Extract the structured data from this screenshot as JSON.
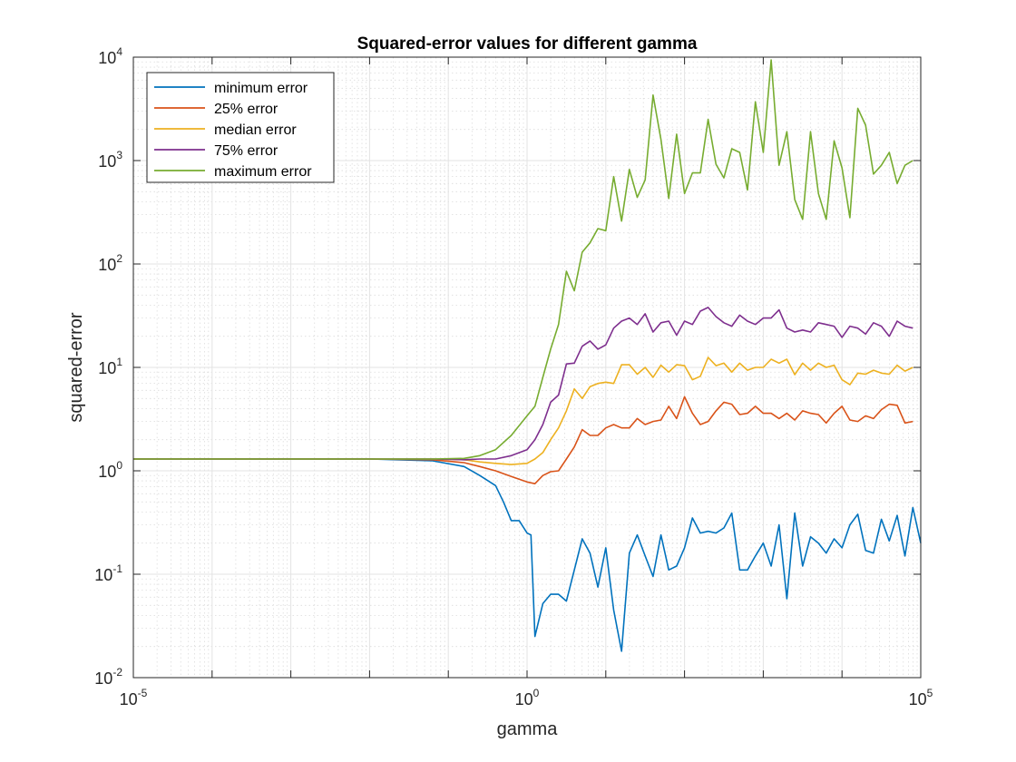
{
  "chart_data": {
    "type": "line",
    "title": "Squared-error values for different gamma",
    "xlabel": "gamma",
    "ylabel": "squared-error",
    "xscale": "log",
    "yscale": "log",
    "xlim": [
      1e-05,
      100000.0
    ],
    "ylim": [
      0.01,
      10000
    ],
    "grid": true,
    "minor_grid": true,
    "legend_position": "top-left",
    "x_ticks": [
      {
        "base": "10",
        "exp": "-5"
      },
      {
        "base": "10",
        "exp": "0"
      },
      {
        "base": "10",
        "exp": "5"
      }
    ],
    "y_ticks": [
      {
        "base": "10",
        "exp": "-2"
      },
      {
        "base": "10",
        "exp": "-1"
      },
      {
        "base": "10",
        "exp": "0"
      },
      {
        "base": "10",
        "exp": "1"
      },
      {
        "base": "10",
        "exp": "2"
      },
      {
        "base": "10",
        "exp": "3"
      },
      {
        "base": "10",
        "exp": "4"
      }
    ],
    "series": [
      {
        "name": "minimum error",
        "color": "#0072BD",
        "log10_x": [
          -5,
          -2,
          -1.2,
          -0.8,
          -0.6,
          -0.4,
          -0.3,
          -0.2,
          -0.1,
          0.0,
          0.05,
          0.1,
          0.2,
          0.3,
          0.4,
          0.5,
          0.6,
          0.7,
          0.8,
          0.9,
          1.0,
          1.1,
          1.2,
          1.3,
          1.4,
          1.5,
          1.6,
          1.7,
          1.8,
          1.9,
          2.0,
          2.1,
          2.2,
          2.3,
          2.4,
          2.5,
          2.6,
          2.7,
          2.8,
          2.9,
          3.0,
          3.1,
          3.2,
          3.3,
          3.4,
          3.5,
          3.6,
          3.7,
          3.8,
          3.9,
          4.0,
          4.1,
          4.2,
          4.3,
          4.4,
          4.5,
          4.6,
          4.7,
          4.8,
          4.9,
          5.0
        ],
        "y": [
          1.3,
          1.3,
          1.25,
          1.1,
          0.9,
          0.72,
          0.5,
          0.33,
          0.33,
          0.25,
          0.24,
          0.025,
          0.052,
          0.064,
          0.064,
          0.055,
          0.11,
          0.22,
          0.16,
          0.075,
          0.18,
          0.045,
          0.018,
          0.16,
          0.24,
          0.15,
          0.095,
          0.24,
          0.11,
          0.12,
          0.18,
          0.35,
          0.25,
          0.26,
          0.25,
          0.28,
          0.39,
          0.11,
          0.11,
          0.15,
          0.2,
          0.12,
          0.3,
          0.058,
          0.39,
          0.12,
          0.23,
          0.2,
          0.16,
          0.22,
          0.18,
          0.3,
          0.38,
          0.17,
          0.16,
          0.34,
          0.21,
          0.37,
          0.15,
          0.44,
          0.2
        ]
      },
      {
        "name": "25% error",
        "color": "#D95319",
        "log10_x": [
          -5,
          -2,
          -1.2,
          -0.8,
          -0.6,
          -0.4,
          -0.2,
          0.0,
          0.1,
          0.2,
          0.3,
          0.4,
          0.5,
          0.6,
          0.7,
          0.8,
          0.9,
          1.0,
          1.1,
          1.2,
          1.3,
          1.4,
          1.5,
          1.6,
          1.7,
          1.8,
          1.9,
          2.0,
          2.1,
          2.2,
          2.3,
          2.4,
          2.5,
          2.6,
          2.7,
          2.8,
          2.9,
          3.0,
          3.1,
          3.2,
          3.3,
          3.4,
          3.5,
          3.6,
          3.7,
          3.8,
          3.9,
          4.0,
          4.1,
          4.2,
          4.3,
          4.4,
          4.5,
          4.6,
          4.7,
          4.8,
          4.9,
          5.0
        ],
        "y": [
          1.3,
          1.3,
          1.28,
          1.2,
          1.1,
          1.0,
          0.88,
          0.78,
          0.75,
          0.9,
          0.98,
          1.0,
          1.3,
          1.7,
          2.5,
          2.2,
          2.2,
          2.6,
          2.8,
          2.6,
          2.6,
          3.2,
          2.8,
          3.0,
          3.1,
          4.2,
          3.2,
          5.2,
          3.6,
          2.8,
          3.0,
          3.8,
          4.6,
          4.4,
          3.5,
          3.6,
          4.2,
          3.6,
          3.6,
          3.2,
          3.6,
          3.1,
          3.8,
          3.6,
          3.5,
          2.9,
          3.6,
          4.2,
          3.1,
          3.0,
          3.4,
          3.2,
          3.9,
          4.4,
          4.3,
          2.9,
          3.0
        ]
      },
      {
        "name": "median error",
        "color": "#EDB120",
        "log10_x": [
          -5,
          -2,
          -1.2,
          -0.8,
          -0.6,
          -0.4,
          -0.2,
          0.0,
          0.1,
          0.2,
          0.3,
          0.4,
          0.5,
          0.6,
          0.7,
          0.8,
          0.9,
          1.0,
          1.1,
          1.2,
          1.3,
          1.4,
          1.5,
          1.6,
          1.7,
          1.8,
          1.9,
          2.0,
          2.1,
          2.2,
          2.3,
          2.4,
          2.5,
          2.6,
          2.7,
          2.8,
          2.9,
          3.0,
          3.1,
          3.2,
          3.3,
          3.4,
          3.5,
          3.6,
          3.7,
          3.8,
          3.9,
          4.0,
          4.1,
          4.2,
          4.3,
          4.4,
          4.5,
          4.6,
          4.7,
          4.8,
          4.9,
          5.0
        ],
        "y": [
          1.3,
          1.3,
          1.3,
          1.28,
          1.22,
          1.18,
          1.15,
          1.18,
          1.3,
          1.5,
          2.0,
          2.6,
          3.8,
          6.2,
          5.0,
          6.5,
          7.0,
          7.2,
          7.0,
          10.6,
          10.6,
          8.6,
          10.0,
          8.0,
          10.5,
          9.0,
          10.6,
          10.4,
          7.6,
          8.2,
          12.5,
          10.4,
          11.0,
          9.0,
          11.0,
          9.4,
          10.0,
          10.0,
          12.0,
          11.0,
          12.0,
          8.5,
          11.0,
          9.4,
          11.0,
          10.0,
          10.5,
          7.6,
          6.8,
          8.8,
          8.6,
          9.4,
          8.8,
          8.6,
          10.5,
          9.2,
          10.0
        ]
      },
      {
        "name": "75% error",
        "color": "#7E2F8E",
        "log10_x": [
          -5,
          -2,
          -1.2,
          -0.8,
          -0.6,
          -0.4,
          -0.2,
          0.0,
          0.1,
          0.2,
          0.3,
          0.4,
          0.5,
          0.6,
          0.7,
          0.8,
          0.9,
          1.0,
          1.1,
          1.2,
          1.3,
          1.4,
          1.5,
          1.6,
          1.7,
          1.8,
          1.9,
          2.0,
          2.1,
          2.2,
          2.3,
          2.4,
          2.5,
          2.6,
          2.7,
          2.8,
          2.9,
          3.0,
          3.1,
          3.2,
          3.3,
          3.4,
          3.5,
          3.6,
          3.7,
          3.8,
          3.9,
          4.0,
          4.1,
          4.2,
          4.3,
          4.4,
          4.5,
          4.6,
          4.7,
          4.8,
          4.9,
          5.0
        ],
        "y": [
          1.3,
          1.3,
          1.3,
          1.28,
          1.3,
          1.3,
          1.4,
          1.6,
          2.0,
          2.8,
          4.6,
          5.4,
          10.8,
          11.0,
          16.0,
          18.0,
          15.0,
          16.5,
          24.0,
          28.0,
          30.0,
          26.0,
          33.0,
          22.0,
          27.0,
          28.0,
          20.5,
          28.0,
          26.0,
          35.0,
          38.0,
          31.0,
          27.0,
          25.0,
          32.0,
          28.0,
          26.0,
          30.0,
          30.0,
          36.0,
          24.0,
          22.0,
          23.0,
          22.0,
          27.0,
          26.0,
          25.0,
          19.5,
          25.0,
          24.0,
          21.0,
          27.0,
          25.0,
          20.0,
          28.0,
          25.0,
          24.0
        ]
      },
      {
        "name": "maximum error",
        "color": "#77AC30",
        "log10_x": [
          -5,
          -2,
          -1.2,
          -0.8,
          -0.6,
          -0.4,
          -0.2,
          0.0,
          0.1,
          0.2,
          0.3,
          0.4,
          0.5,
          0.6,
          0.7,
          0.8,
          0.9,
          1.0,
          1.1,
          1.2,
          1.3,
          1.4,
          1.5,
          1.6,
          1.7,
          1.8,
          1.9,
          2.0,
          2.1,
          2.2,
          2.3,
          2.4,
          2.5,
          2.6,
          2.7,
          2.8,
          2.9,
          3.0,
          3.1,
          3.2,
          3.3,
          3.4,
          3.5,
          3.6,
          3.7,
          3.8,
          3.9,
          4.0,
          4.1,
          4.2,
          4.3,
          4.4,
          4.5,
          4.6,
          4.7,
          4.8,
          4.9,
          5.0
        ],
        "y": [
          1.3,
          1.3,
          1.3,
          1.32,
          1.4,
          1.6,
          2.2,
          3.4,
          4.2,
          8.0,
          15.0,
          26.0,
          85.0,
          55.0,
          130.0,
          160.0,
          220.0,
          210.0,
          700.0,
          260.0,
          820.0,
          440.0,
          650.0,
          4300.0,
          1600.0,
          430.0,
          1800.0,
          480.0,
          760.0,
          760.0,
          2500.0,
          920.0,
          680.0,
          1300.0,
          1200.0,
          520.0,
          3700.0,
          1200.0,
          9400.0,
          900.0,
          1900.0,
          420.0,
          270.0,
          1900.0,
          480.0,
          270.0,
          1550.0,
          850.0,
          280.0,
          3200.0,
          2200.0,
          740.0,
          900.0,
          1200.0,
          600.0,
          900.0,
          1000.0
        ]
      }
    ]
  }
}
